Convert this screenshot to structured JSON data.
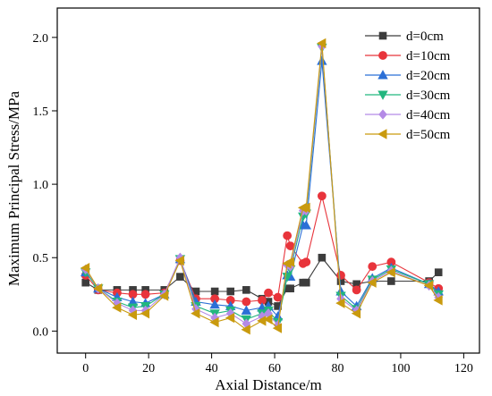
{
  "chart_data": {
    "type": "line",
    "title": "",
    "xlabel": "Axial Distance/m",
    "ylabel": "Maximum Principal Stress/MPa",
    "xlim": [
      -9,
      125
    ],
    "ylim": [
      -0.15,
      2.2
    ],
    "xticks": [
      0,
      20,
      40,
      60,
      80,
      100,
      120
    ],
    "yticks": [
      0.0,
      0.5,
      1.0,
      1.5,
      2.0
    ],
    "ytick_labels": [
      "0.0",
      "0.5",
      "1.0",
      "1.5",
      "2.0"
    ],
    "grid": false,
    "legend_position": "top-right",
    "x": [
      0,
      4,
      10,
      15,
      19,
      25,
      30,
      35,
      41,
      46,
      51,
      56,
      58,
      61,
      64,
      65,
      69,
      70,
      75,
      81,
      86,
      91,
      97,
      109,
      112
    ],
    "series": [
      {
        "name": "d=0cm",
        "color": "#3c3c3c",
        "marker": "square",
        "values": [
          0.33,
          0.28,
          0.28,
          0.28,
          0.28,
          0.28,
          0.37,
          0.27,
          0.27,
          0.27,
          0.28,
          0.22,
          0.2,
          0.17,
          0.29,
          0.29,
          0.33,
          0.33,
          0.5,
          0.34,
          0.32,
          0.34,
          0.34,
          0.34,
          0.4
        ]
      },
      {
        "name": "d=10cm",
        "color": "#e8343b",
        "marker": "circle",
        "values": [
          0.38,
          0.28,
          0.26,
          0.25,
          0.25,
          0.26,
          0.48,
          0.22,
          0.22,
          0.21,
          0.2,
          0.21,
          0.26,
          0.23,
          0.65,
          0.58,
          0.46,
          0.47,
          0.92,
          0.38,
          0.28,
          0.44,
          0.47,
          0.33,
          0.29
        ]
      },
      {
        "name": "d=20cm",
        "color": "#2b6fd6",
        "marker": "triangle-up",
        "values": [
          0.4,
          0.29,
          0.23,
          0.2,
          0.19,
          0.25,
          0.49,
          0.2,
          0.18,
          0.17,
          0.14,
          0.16,
          0.17,
          0.1,
          0.38,
          0.37,
          0.72,
          0.72,
          1.84,
          0.27,
          0.17,
          0.36,
          0.43,
          0.32,
          0.27
        ]
      },
      {
        "name": "d=30cm",
        "color": "#22b67e",
        "marker": "triangle-down",
        "values": [
          0.4,
          0.29,
          0.2,
          0.16,
          0.17,
          0.25,
          0.49,
          0.17,
          0.12,
          0.14,
          0.08,
          0.12,
          0.14,
          0.06,
          0.37,
          0.42,
          0.78,
          0.8,
          1.93,
          0.24,
          0.15,
          0.35,
          0.42,
          0.32,
          0.25
        ]
      },
      {
        "name": "d=40cm",
        "color": "#b48ae6",
        "marker": "diamond",
        "values": [
          0.42,
          0.29,
          0.19,
          0.14,
          0.14,
          0.25,
          0.5,
          0.15,
          0.09,
          0.12,
          0.05,
          0.1,
          0.12,
          0.04,
          0.45,
          0.44,
          0.82,
          0.82,
          1.94,
          0.22,
          0.14,
          0.34,
          0.41,
          0.31,
          0.23
        ]
      },
      {
        "name": "d=50cm",
        "color": "#c99a0e",
        "marker": "triangle-left",
        "values": [
          0.43,
          0.29,
          0.16,
          0.11,
          0.12,
          0.24,
          0.48,
          0.12,
          0.06,
          0.09,
          0.01,
          0.07,
          0.08,
          0.02,
          0.46,
          0.47,
          0.84,
          0.84,
          1.96,
          0.19,
          0.12,
          0.33,
          0.4,
          0.31,
          0.21
        ]
      }
    ]
  }
}
